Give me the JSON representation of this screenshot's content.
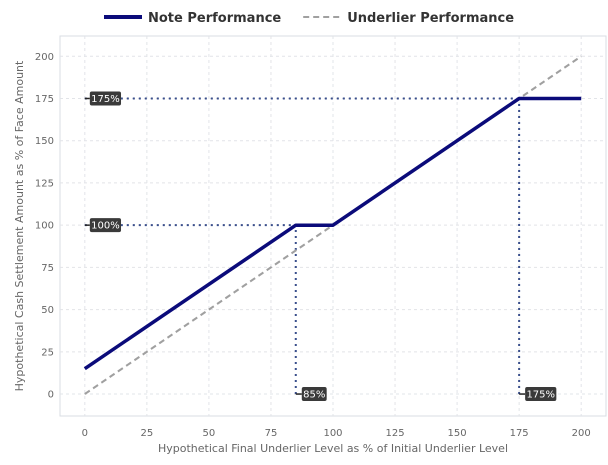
{
  "chart_data": {
    "type": "line",
    "title": "",
    "xlabel": "Hypothetical Final Underlier Level as % of Initial Underlier Level",
    "ylabel": "Hypothetical Cash Settlement Amount as % of Face Amount",
    "xlim": [
      -10,
      210
    ],
    "ylim": [
      -13,
      212
    ],
    "xticks": [
      0,
      25,
      50,
      75,
      100,
      125,
      150,
      175,
      200
    ],
    "yticks": [
      0,
      25,
      50,
      75,
      100,
      125,
      150,
      175,
      200
    ],
    "grid": true,
    "legend_position": "top-center",
    "series": [
      {
        "name": "Note Performance",
        "color": "#0b0b7a",
        "style": "solid",
        "points": [
          [
            0,
            15
          ],
          [
            85,
            100
          ],
          [
            100,
            100
          ],
          [
            175,
            175
          ],
          [
            200,
            175
          ]
        ]
      },
      {
        "name": "Underlier Performance",
        "color": "#a0a0a0",
        "style": "dashed",
        "points": [
          [
            0,
            0
          ],
          [
            200,
            200
          ]
        ]
      }
    ],
    "reference_lines": [
      {
        "orientation": "horizontal",
        "value": 175,
        "from": 0,
        "to": 175,
        "color": "#3a4f8c"
      },
      {
        "orientation": "horizontal",
        "value": 100,
        "from": 0,
        "to": 85,
        "color": "#3a4f8c"
      },
      {
        "orientation": "vertical",
        "value": 85,
        "from": 0,
        "to": 100,
        "color": "#3a4f8c"
      },
      {
        "orientation": "vertical",
        "value": 175,
        "from": 0,
        "to": 175,
        "color": "#3a4f8c"
      }
    ],
    "annotations": [
      {
        "text": "175%",
        "x": 0,
        "y": 175,
        "anchor": "y-axis"
      },
      {
        "text": "100%",
        "x": 0,
        "y": 100,
        "anchor": "y-axis"
      },
      {
        "text": "85%",
        "x": 85,
        "y": 0,
        "anchor": "x-axis"
      },
      {
        "text": "175%",
        "x": 175,
        "y": 0,
        "anchor": "x-axis"
      }
    ]
  }
}
